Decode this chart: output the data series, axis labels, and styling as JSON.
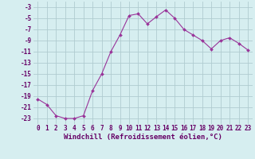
{
  "x": [
    0,
    1,
    2,
    3,
    4,
    5,
    6,
    7,
    8,
    9,
    10,
    11,
    12,
    13,
    14,
    15,
    16,
    17,
    18,
    19,
    20,
    21,
    22,
    23
  ],
  "y": [
    -19.5,
    -20.5,
    -22.5,
    -23.0,
    -23.0,
    -22.5,
    -18.0,
    -15.0,
    -11.0,
    -8.0,
    -4.5,
    -4.2,
    -6.0,
    -4.7,
    -3.5,
    -5.0,
    -7.0,
    -8.0,
    -9.0,
    -10.5,
    -9.0,
    -8.5,
    -9.5,
    -10.7
  ],
  "line_color": "#993399",
  "marker": "D",
  "marker_size": 2.0,
  "bg_color": "#d6eef0",
  "grid_color": "#b0ccd0",
  "xlabel": "Windchill (Refroidissement éolien,°C)",
  "ylim": [
    -24,
    -2
  ],
  "xlim": [
    -0.5,
    23.5
  ],
  "yticks": [
    -3,
    -5,
    -7,
    -9,
    -11,
    -13,
    -15,
    -17,
    -19,
    -21,
    -23
  ],
  "xticks": [
    0,
    1,
    2,
    3,
    4,
    5,
    6,
    7,
    8,
    9,
    10,
    11,
    12,
    13,
    14,
    15,
    16,
    17,
    18,
    19,
    20,
    21,
    22,
    23
  ],
  "tick_fontsize": 5.5,
  "xlabel_fontsize": 6.5
}
